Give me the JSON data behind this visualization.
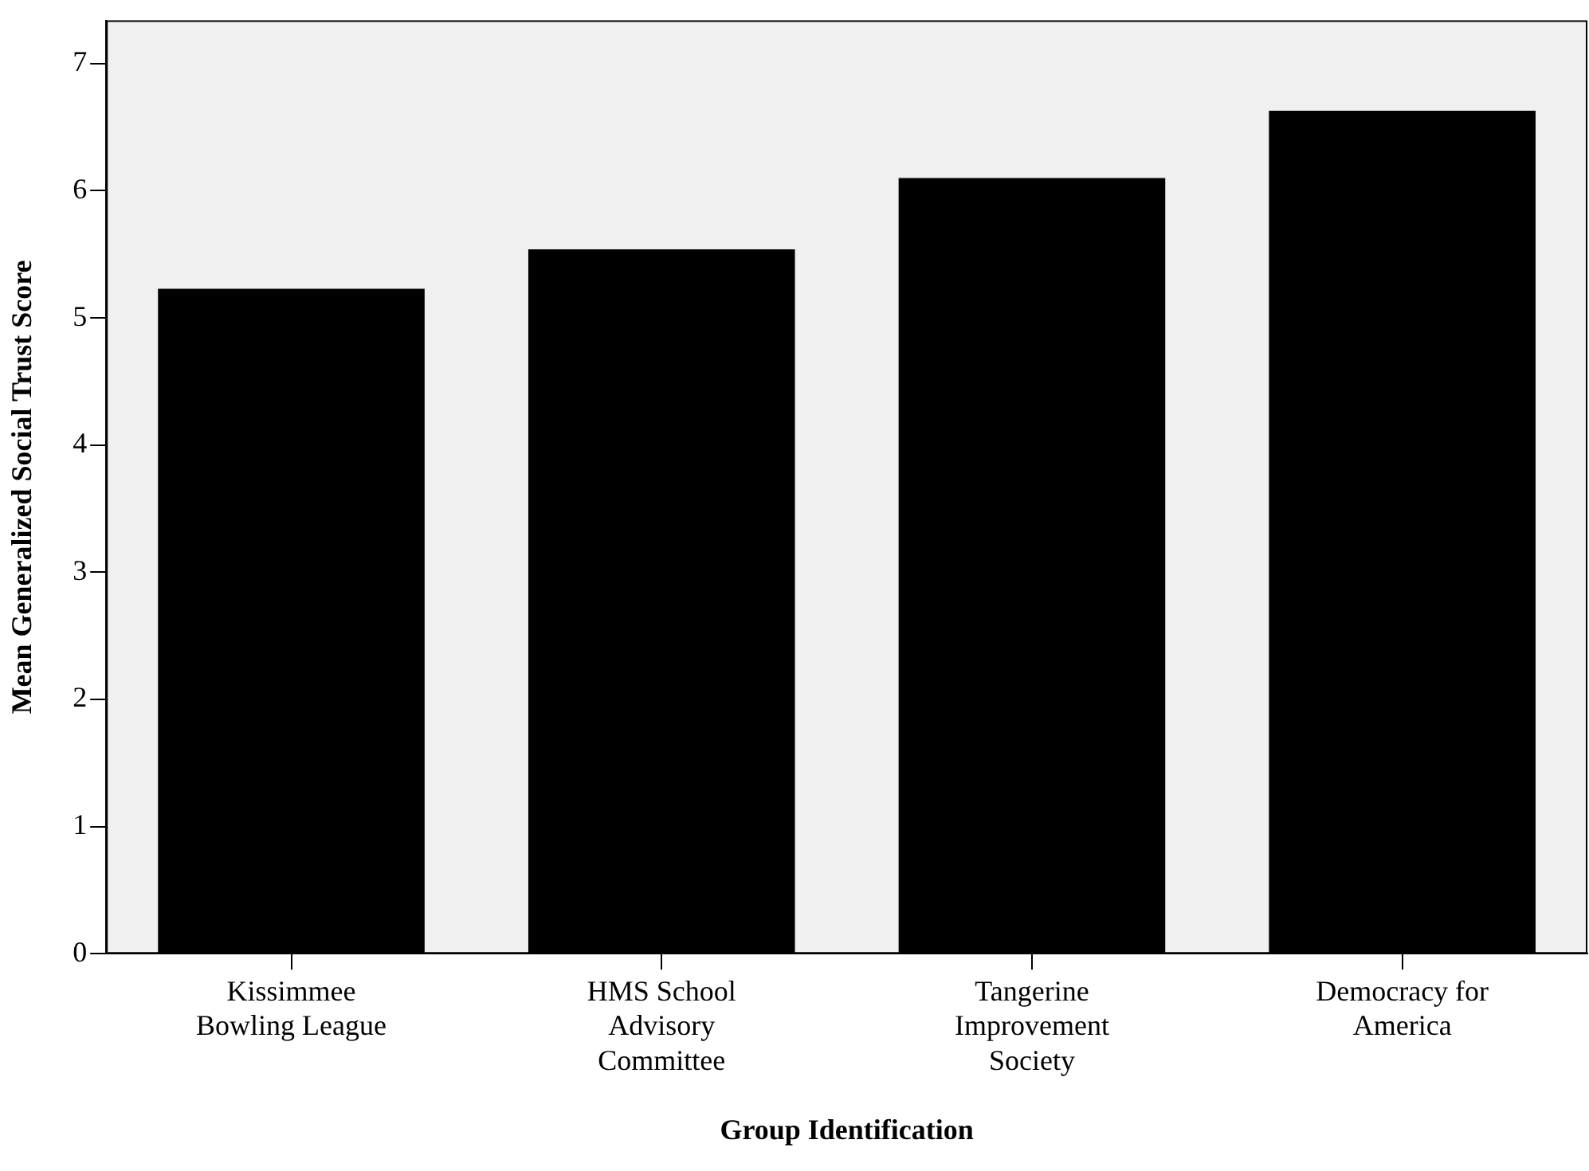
{
  "chart_data": {
    "type": "bar",
    "xlabel": "Group Identification",
    "ylabel": "Mean Generalized Social Trust Score",
    "categories": [
      "Kissimmee Bowling League",
      "HMS School Advisory Committee",
      "Tangerine Improvement Society",
      "Democracy for America"
    ],
    "values": [
      5.23,
      5.54,
      6.1,
      6.63
    ],
    "color": "#000000",
    "ylim": [
      0,
      7.34
    ],
    "yticks": [
      0,
      1,
      2,
      3,
      4,
      5,
      6,
      7
    ],
    "grid": false,
    "legend": false
  }
}
